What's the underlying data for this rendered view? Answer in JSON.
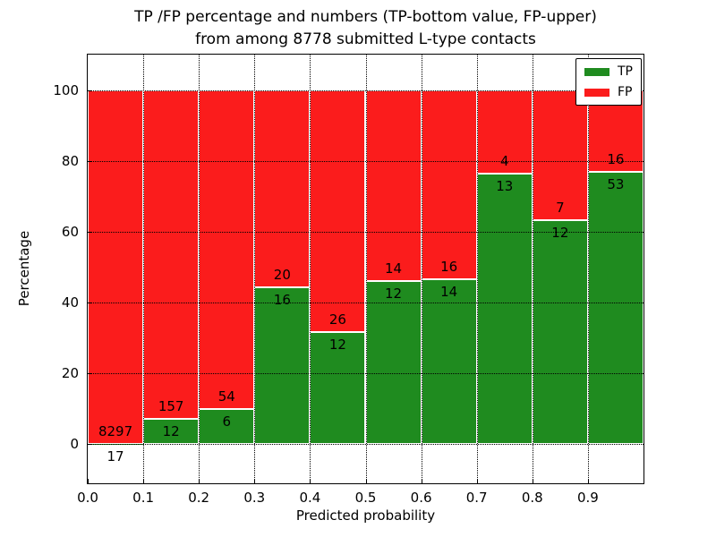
{
  "figure": {
    "title_line1": "TP /FP percentage and numbers (TP-bottom value, FP-upper)",
    "title_line2": "from among 8778 submitted L-type contacts"
  },
  "axes": {
    "xlabel": "Predicted probability",
    "ylabel": "Percentage",
    "x_tick_labels": [
      "0.0",
      "0.1",
      "0.2",
      "0.3",
      "0.4",
      "0.5",
      "0.6",
      "0.7",
      "0.8",
      "0.9"
    ],
    "y_tick_values": [
      0,
      20,
      40,
      60,
      80,
      100
    ]
  },
  "legend": {
    "position": "upper-right",
    "items": [
      {
        "label": "TP",
        "color": "#1f8b1f"
      },
      {
        "label": "FP",
        "color": "#fb1c1c"
      }
    ]
  },
  "chart_data": {
    "type": "bar",
    "stacked": true,
    "title": "TP /FP percentage and numbers (TP-bottom value, FP-upper) from among 8778 submitted L-type contacts",
    "xlabel": "Predicted probability",
    "ylabel": "Percentage",
    "total_contacts": 8778,
    "bin_edges": [
      0.0,
      0.1,
      0.2,
      0.3,
      0.4,
      0.5,
      0.6,
      0.7,
      0.8,
      0.9,
      1.0
    ],
    "categories": [
      "0.0-0.1",
      "0.1-0.2",
      "0.2-0.3",
      "0.3-0.4",
      "0.4-0.5",
      "0.5-0.6",
      "0.6-0.7",
      "0.7-0.8",
      "0.8-0.9",
      "0.9-1.0"
    ],
    "series": [
      {
        "name": "TP",
        "color": "#1f8b1f",
        "position": "bottom",
        "counts": [
          17,
          12,
          6,
          16,
          12,
          12,
          14,
          13,
          12,
          53
        ],
        "values": [
          0.2,
          7.1,
          10.0,
          44.4,
          31.6,
          46.2,
          46.7,
          76.5,
          63.2,
          76.8
        ]
      },
      {
        "name": "FP",
        "color": "#fb1c1c",
        "position": "top",
        "counts": [
          8297,
          157,
          54,
          20,
          26,
          14,
          16,
          4,
          7,
          16
        ],
        "values": [
          99.8,
          92.9,
          90.0,
          55.6,
          68.4,
          53.8,
          53.3,
          23.5,
          36.8,
          23.2
        ]
      }
    ],
    "annotation_note": "TP count printed just below the TP/FP boundary, FP count just above it",
    "ylim": [
      -11,
      110
    ],
    "bar_total_percent": 100,
    "grid": "dotted-black",
    "legend_position": "upper right",
    "edge_color": "#ffffff",
    "frame_color": "#000000"
  }
}
